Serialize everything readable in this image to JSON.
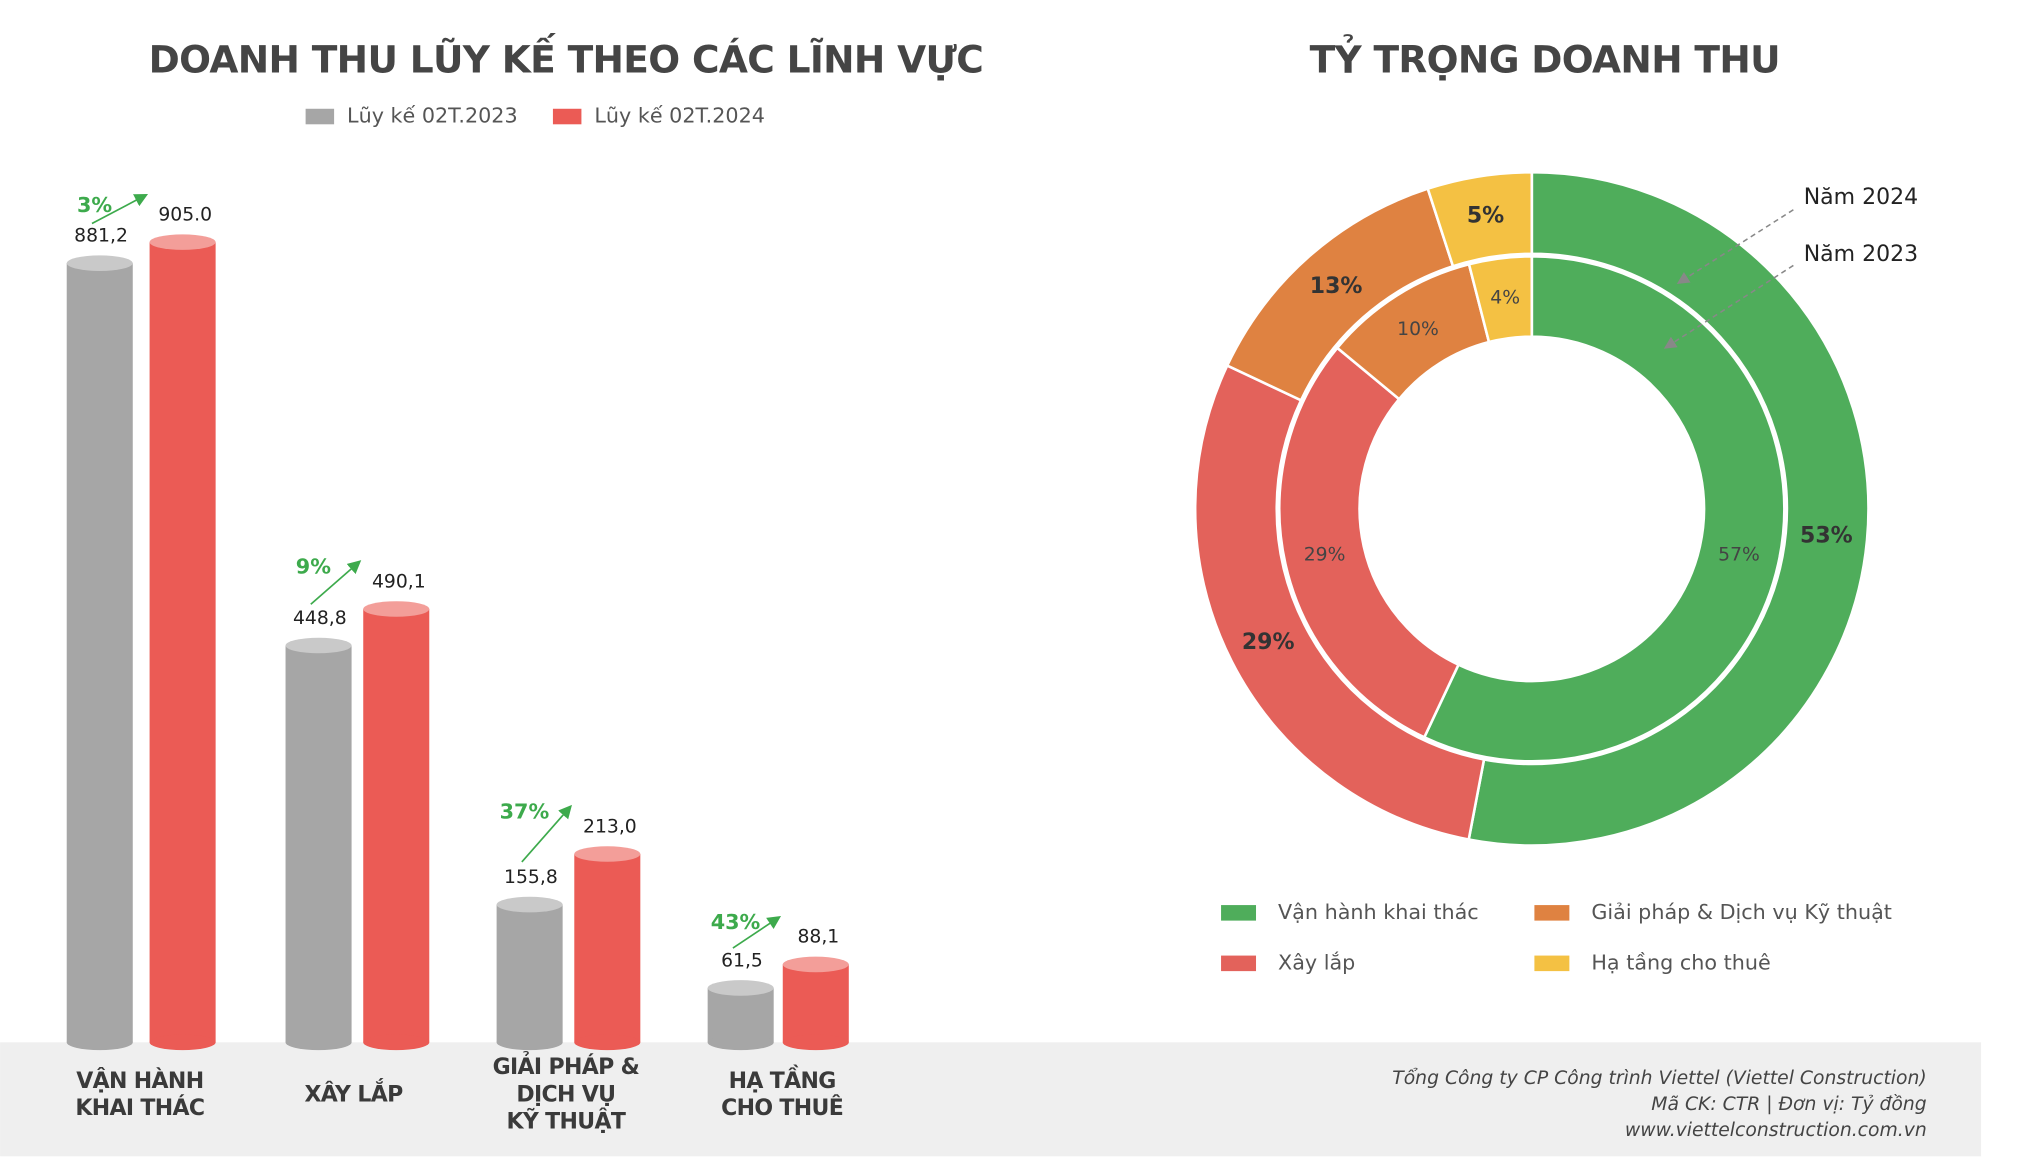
{
  "chart_data": [
    {
      "type": "bar",
      "title": "DOANH THU LŨY KẾ THEO CÁC LĨNH VỰC",
      "categories": [
        [
          "VẬN HÀNH",
          "KHAI THÁC"
        ],
        [
          "XÂY LẮP"
        ],
        [
          "GIẢI PHÁP &",
          "DỊCH VỤ",
          "KỸ THUẬT"
        ],
        [
          "HẠ TẦNG",
          "CHO THUÊ"
        ]
      ],
      "series": [
        {
          "name": "Lũy kế 02T.2023",
          "color": "#a6a6a6",
          "values": [
            881.2,
            448.8,
            155.8,
            61.5
          ],
          "value_labels": [
            "881,2",
            "448,8",
            "155,8",
            "61,5"
          ]
        },
        {
          "name": "Lũy kế 02T.2024",
          "color": "#eb5b55",
          "values": [
            905.0,
            490.1,
            213.0,
            88.1
          ],
          "value_labels": [
            "905.0",
            "490,1",
            "213,0",
            "88,1"
          ]
        }
      ],
      "growth": {
        "values": [
          3,
          9,
          37,
          43
        ],
        "value_labels": [
          "3%",
          "9%",
          "37%",
          "43%"
        ],
        "color": "#3daa4c"
      },
      "legend": "top"
    },
    {
      "type": "donut",
      "title": "TỶ TRỌNG DOANH THU",
      "categories": [
        "Vận hành khai thác",
        "Xây lắp",
        "Giải pháp & Dịch vụ Kỹ thuật",
        "Hạ tầng cho thuê"
      ],
      "colors": [
        "#4fad5b",
        "#e3625b",
        "#df8241",
        "#f4c143"
      ],
      "series": [
        {
          "name": "Năm 2024",
          "values": [
            53,
            29,
            13,
            5
          ],
          "value_labels": [
            "53%",
            "29%",
            "13%",
            "5%"
          ]
        },
        {
          "name": "Năm 2023",
          "values": [
            57,
            29,
            10,
            4
          ],
          "value_labels": [
            "57%",
            "29%",
            "10%",
            "4%"
          ]
        }
      ],
      "legend": "bottom"
    }
  ],
  "footer": {
    "lines": [
      "Tổng Công ty CP Công trình Viettel (Viettel Construction)",
      "Mã CK: CTR  |  Đơn vị: Tỷ đồng",
      "www.viettelconstruction.com.vn"
    ]
  }
}
